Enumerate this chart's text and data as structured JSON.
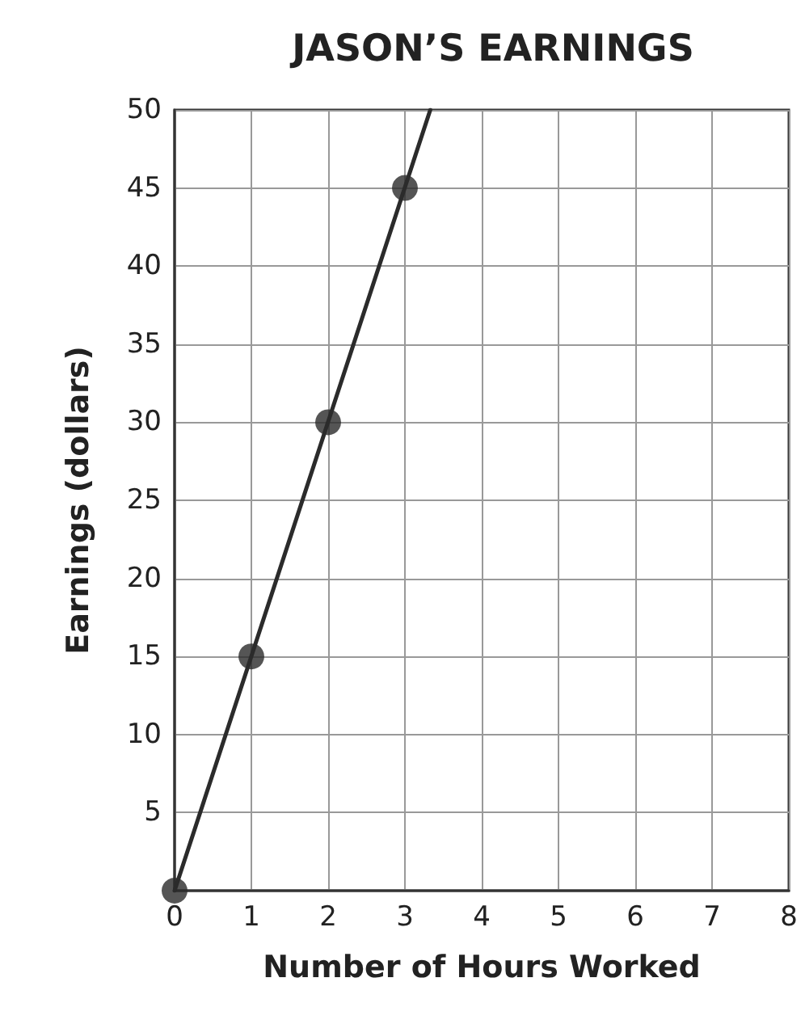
{
  "chart_data": {
    "type": "line",
    "title": "JASON’S EARNINGS",
    "xlabel": "Number of Hours Worked",
    "ylabel": "Earnings (dollars)",
    "series": [
      {
        "color": "#2b2b2b",
        "x": [
          0,
          3.33
        ],
        "values": [
          0,
          50
        ],
        "marker": "none",
        "line_style": "solid"
      },
      {
        "type": "scatter",
        "color": "#2b2b2b",
        "x": [
          0,
          1,
          2,
          3
        ],
        "values": [
          0,
          15,
          30,
          45
        ],
        "marker": "circle"
      }
    ],
    "xlim": [
      0,
      8
    ],
    "xticks": [
      0,
      1,
      2,
      3,
      4,
      5,
      6,
      7,
      8
    ],
    "ylim": [
      0,
      50
    ],
    "yticks": [
      {
        "value": 0,
        "label": null
      },
      5,
      10,
      15,
      20,
      25,
      30,
      35,
      40,
      45,
      50
    ],
    "grid": true
  }
}
